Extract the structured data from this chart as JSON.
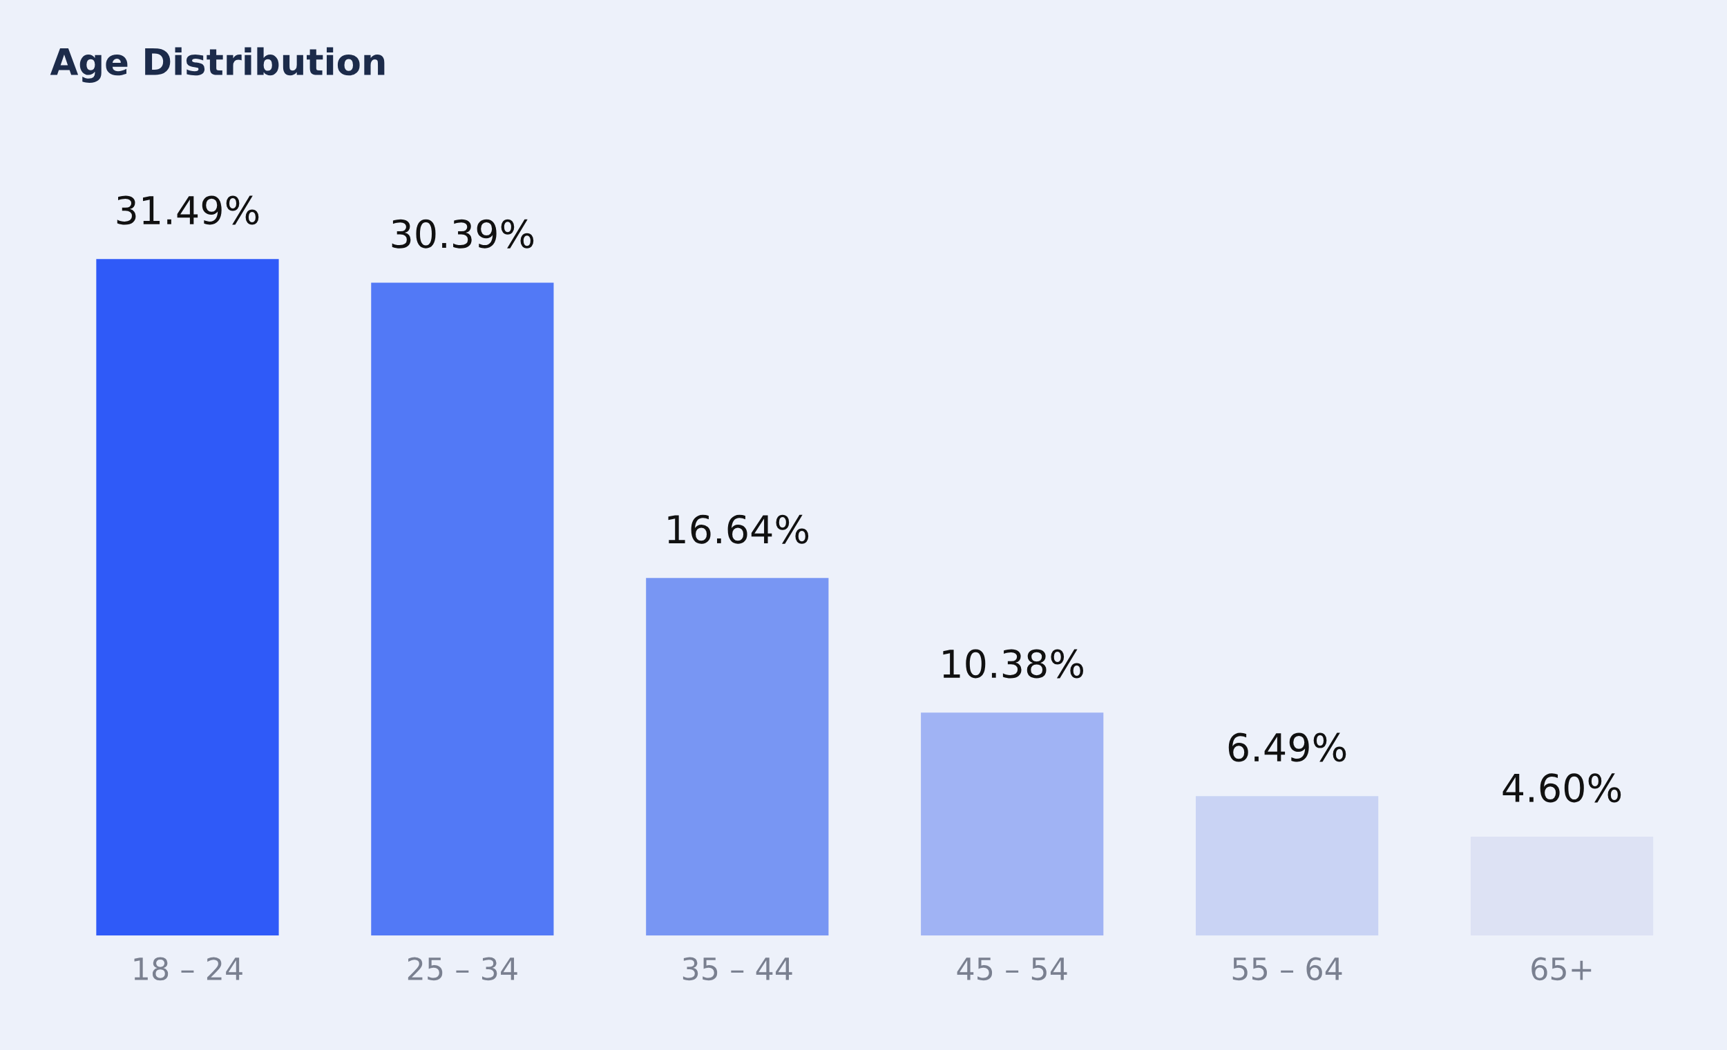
{
  "chart_data": {
    "type": "bar",
    "title": "Age Distribution",
    "categories": [
      "18 – 24",
      "25 – 34",
      "35 – 44",
      "45 – 54",
      "55 – 64",
      "65+"
    ],
    "values": [
      31.49,
      30.39,
      16.64,
      10.38,
      6.49,
      4.6
    ],
    "value_labels": [
      "31.49%",
      "30.39%",
      "16.64%",
      "10.38%",
      "6.49%",
      "4.60%"
    ],
    "colors": [
      "#2f5af8",
      "#5279f6",
      "#7896f3",
      "#a0b3f4",
      "#c9d3f4",
      "#dde2f4"
    ],
    "grid": false,
    "legend": false
  }
}
